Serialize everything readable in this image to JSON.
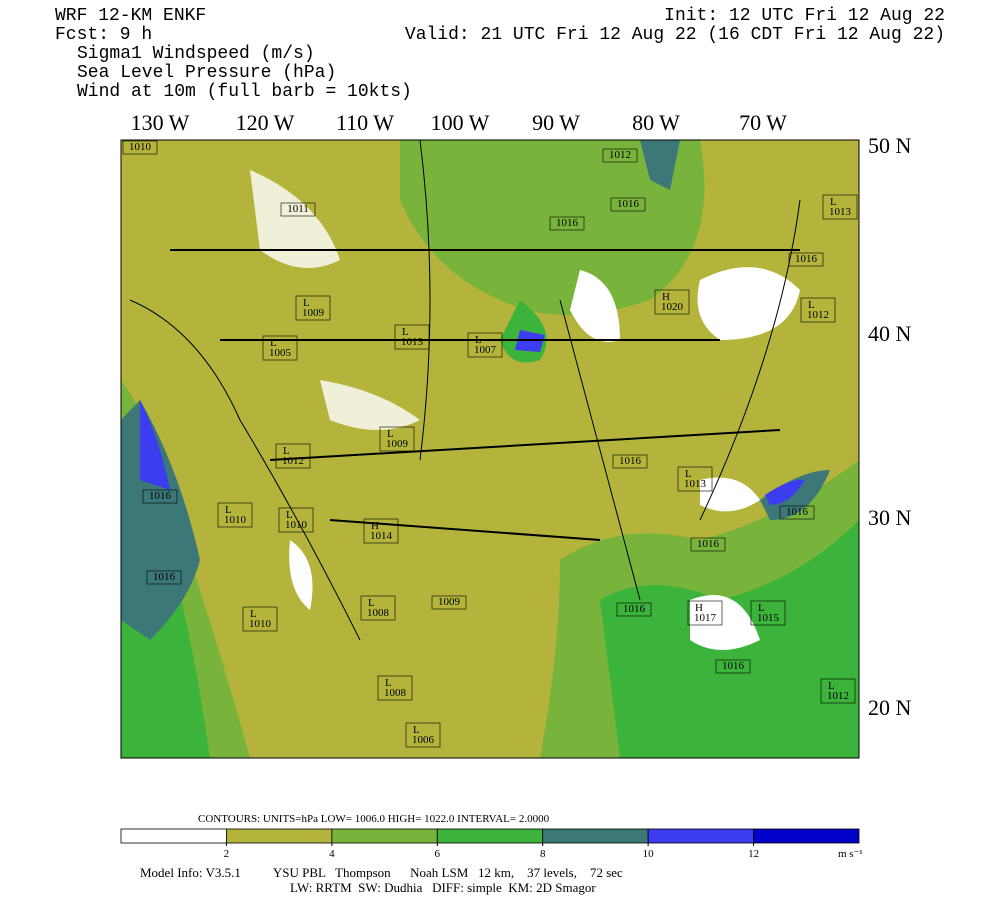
{
  "header": {
    "model": "WRF 12-KM ENKF",
    "forecast": "Fcst:    9 h",
    "fields": [
      "Sigma1 Windspeed (m/s)",
      "Sea Level Pressure (hPa)",
      "Wind at 10m (full barb = 10kts)"
    ],
    "init": "Init: 12 UTC Fri 12 Aug 22",
    "valid": "Valid: 21 UTC Fri 12 Aug 22 (16 CDT Fri 12 Aug 22)"
  },
  "map": {
    "longitude_labels": [
      "130 W",
      "120 W",
      "110 W",
      "100 W",
      "90 W",
      "80 W",
      "70 W"
    ],
    "latitude_labels": [
      "50 N",
      "40 N",
      "30 N",
      "20 N"
    ],
    "pressure_labels": [
      {
        "value": "1010"
      },
      {
        "value": "1011"
      },
      {
        "value": "1012"
      },
      {
        "value": "1016"
      },
      {
        "value": "1016"
      },
      {
        "mark": "L",
        "value": "1013"
      },
      {
        "value": "1016"
      },
      {
        "mark": "H",
        "value": "1020"
      },
      {
        "mark": "L",
        "value": "1012"
      },
      {
        "mark": "L",
        "value": "1009"
      },
      {
        "mark": "L",
        "value": "1013"
      },
      {
        "mark": "L",
        "value": "1007"
      },
      {
        "mark": "L",
        "value": "1005"
      },
      {
        "mark": "L",
        "value": "1009"
      },
      {
        "mark": "L",
        "value": "1012"
      },
      {
        "value": "1016"
      },
      {
        "mark": "L",
        "value": "1013"
      },
      {
        "value": "1016"
      },
      {
        "value": "1016"
      },
      {
        "mark": "L",
        "value": "1010"
      },
      {
        "mark": "L",
        "value": "1010"
      },
      {
        "mark": "H",
        "value": "1014"
      },
      {
        "value": "1016"
      },
      {
        "value": "1016"
      },
      {
        "value": "1009"
      },
      {
        "value": "1016"
      },
      {
        "mark": "H",
        "value": "1017"
      },
      {
        "mark": "L",
        "value": "1015"
      },
      {
        "mark": "L",
        "value": "1010"
      },
      {
        "mark": "L",
        "value": "1008"
      },
      {
        "value": "1016"
      },
      {
        "mark": "L",
        "value": "1008"
      },
      {
        "mark": "L",
        "value": "1012"
      },
      {
        "mark": "L",
        "value": "1006"
      }
    ]
  },
  "contours": "CONTOURS:   UNITS=hPa   LOW=    1006.0        HIGH=    1022.0          INTERVAL=     2.0000",
  "colorbar": {
    "ticks": [
      2,
      4,
      6,
      8,
      10,
      12
    ],
    "units": "m s⁻¹",
    "colors": [
      "#ffffff",
      "#b4b43c",
      "#78b43c",
      "#3cb43c",
      "#3c7878",
      "#3c3cf0",
      "#0000c8"
    ]
  },
  "footer": {
    "line1": "Model Info: V3.5.1          YSU PBL   Thompson      Noah LSM   12 km,    37 levels,    72 sec",
    "line2": "LW: RRTM  SW: Dudhia   DIFF: simple  KM: 2D Smagor"
  }
}
